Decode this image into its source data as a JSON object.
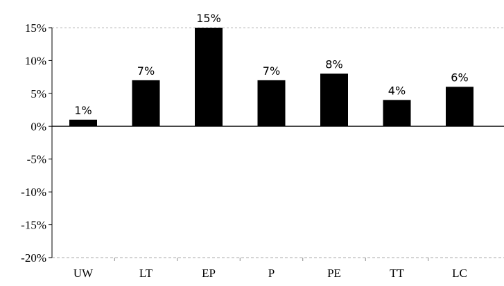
{
  "chart_data": {
    "type": "bar",
    "categories": [
      "UW",
      "LT",
      "EP",
      "P",
      "PE",
      "TT",
      "LC"
    ],
    "values": [
      1,
      7,
      15,
      7,
      8,
      4,
      6
    ],
    "data_labels": [
      "1%",
      "7%",
      "15%",
      "7%",
      "8%",
      "4%",
      "6%"
    ],
    "ylim": [
      -20,
      15
    ],
    "yticks": [
      15,
      10,
      5,
      0,
      -5,
      -10,
      -15,
      -20
    ],
    "ytick_labels": [
      "15%",
      "10%",
      "5%",
      "0%",
      "-5%",
      "-10%",
      "-15%",
      "-20%"
    ],
    "grid": false,
    "legend": "none",
    "bar_color": "#000000",
    "title": "",
    "xlabel": "",
    "ylabel": ""
  }
}
